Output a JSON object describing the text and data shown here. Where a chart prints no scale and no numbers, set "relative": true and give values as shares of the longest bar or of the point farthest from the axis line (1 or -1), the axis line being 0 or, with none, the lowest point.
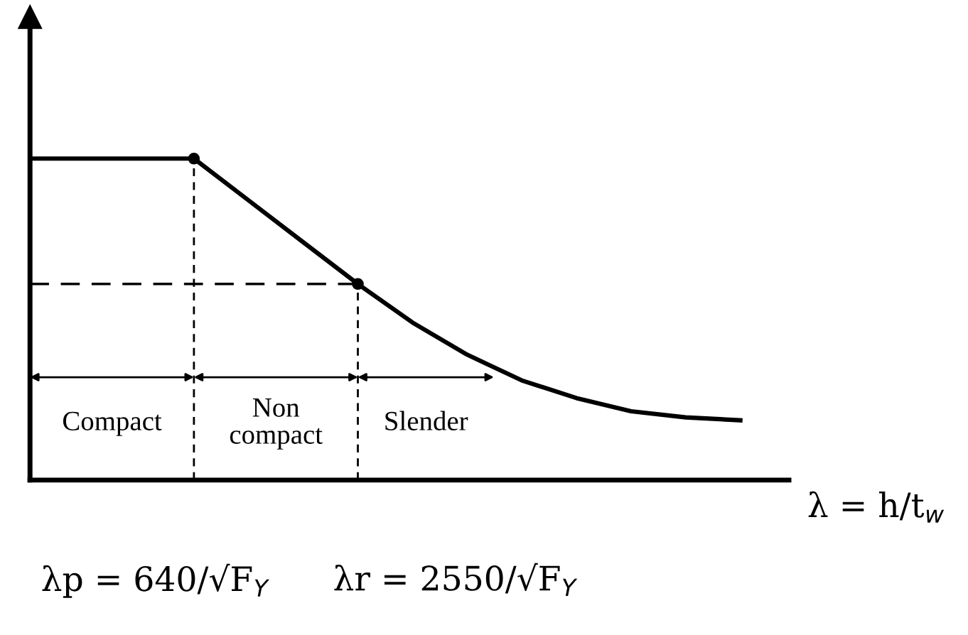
{
  "chart_data": {
    "type": "line",
    "relative": true,
    "xlabel": "λ = h/t$_{w}$",
    "categories": [
      null,
      null,
      null,
      null,
      null,
      null,
      null,
      null,
      null,
      null,
      null,
      null,
      null,
      null
    ],
    "grid": false,
    "legend": false,
    "line_style": "solid",
    "series": [
      {
        "color": "#000000",
        "values": [
          1,
          1,
          1,
          1,
          0.87,
          0.74,
          0.61,
          0.49,
          0.39,
          0.31,
          0.255,
          0.214,
          0.195,
          0.186
        ]
      }
    ],
    "ref_lines": [
      {
        "axis": "y",
        "value": 0.61,
        "line_style": "dashed"
      }
    ],
    "annotations": [
      "Compact",
      "Non\ncompact",
      "Slender",
      "λp = 640/√F$_{Y}$",
      "λr = 2550/√F$_{Y}$"
    ]
  }
}
